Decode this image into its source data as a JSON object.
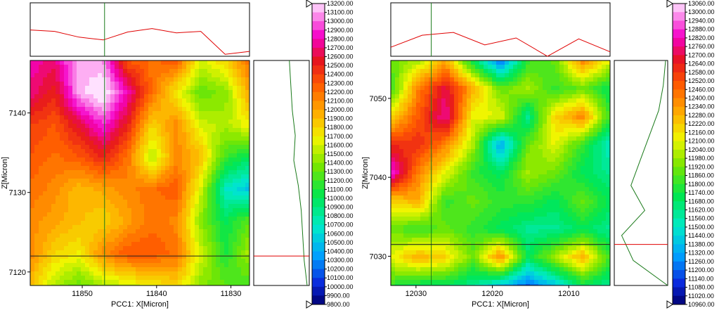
{
  "chart_data": [
    {
      "type": "heatmap",
      "xlabel": "PCC1: X[Micron]",
      "ylabel": "Z[Micron]",
      "x_ticks": [
        11850,
        11840,
        11830
      ],
      "y_ticks": [
        7120,
        7130,
        7140
      ],
      "xlim": [
        11857,
        11827.5
      ],
      "ylim": [
        7118.3,
        7146.6
      ],
      "crosshair": {
        "x": 11847,
        "z": 7122
      },
      "colorbar": {
        "min": 9800,
        "max": 13200,
        "ticks": [
          "13200.00",
          "13100.00",
          "13000.00",
          "12900.00",
          "12800.00",
          "12700.00",
          "12600.00",
          "12500.00",
          "12400.00",
          "12300.00",
          "12200.00",
          "12100.00",
          "12000.00",
          "11900.00",
          "11800.00",
          "11700.00",
          "11600.00",
          "11500.00",
          "11400.00",
          "11300.00",
          "11200.00",
          "11100.00",
          "11000.00",
          "10900.00",
          "10800.00",
          "10700.00",
          "10600.00",
          "10500.00",
          "10400.00",
          "10300.00",
          "10200.00",
          "10100.00",
          "10000.00",
          "9900.00",
          "9800.00"
        ]
      },
      "grid_values": [
        [
          12800,
          12700,
          13150,
          13050,
          12300,
          12200,
          12300,
          11600,
          11800,
          12200
        ],
        [
          12700,
          12500,
          13100,
          13300,
          12800,
          12200,
          11700,
          11300,
          11400,
          12000
        ],
        [
          12400,
          12300,
          12600,
          12900,
          12500,
          11800,
          12100,
          11600,
          11500,
          11700
        ],
        [
          12300,
          12200,
          12300,
          12500,
          12200,
          11500,
          12100,
          11900,
          11200,
          11000
        ],
        [
          12200,
          12100,
          11900,
          12000,
          12100,
          12200,
          12300,
          11600,
          10700,
          10500
        ],
        [
          12100,
          12000,
          11900,
          11800,
          12000,
          12200,
          12100,
          11400,
          11000,
          11300
        ],
        [
          12100,
          11800,
          11700,
          12100,
          12300,
          12300,
          12200,
          11600,
          11100,
          11500
        ],
        [
          11900,
          11500,
          11300,
          11500,
          11600,
          11700,
          11800,
          11400,
          11300,
          11200
        ]
      ],
      "top_profile": [
        12250,
        12200,
        12000,
        11900,
        12180,
        12300,
        12150,
        12200,
        11400,
        11500
      ],
      "side_profile": [
        12000,
        11950,
        11900,
        11800,
        11850,
        11700,
        11600,
        11550,
        11500,
        11400
      ]
    },
    {
      "type": "heatmap",
      "xlabel": "PCC1: X[Micron]",
      "ylabel": "Z[Micron]",
      "x_ticks": [
        12030,
        12020,
        12010
      ],
      "y_ticks": [
        7030,
        7040,
        7050
      ],
      "xlim": [
        12033.3,
        12004.6
      ],
      "ylim": [
        7026.3,
        7054.8
      ],
      "crosshair": {
        "x": 12028,
        "z": 7031.5
      },
      "colorbar": {
        "min": 10960,
        "max": 13060,
        "ticks": [
          "13060.00",
          "13000.00",
          "12940.00",
          "12880.00",
          "12820.00",
          "12760.00",
          "12700.00",
          "12640.00",
          "12580.00",
          "12520.00",
          "12460.00",
          "12400.00",
          "12340.00",
          "12280.00",
          "12220.00",
          "12160.00",
          "12100.00",
          "12040.00",
          "11980.00",
          "11920.00",
          "11860.00",
          "11800.00",
          "11740.00",
          "11680.00",
          "11620.00",
          "11560.00",
          "11500.00",
          "11440.00",
          "11380.00",
          "11320.00",
          "11260.00",
          "11200.00",
          "11140.00",
          "11080.00",
          "11020.00",
          "10960.00"
        ]
      },
      "grid_values": [
        [
          11900,
          12000,
          12300,
          11700,
          11200,
          11800,
          11900,
          12400,
          12100
        ],
        [
          11800,
          12400,
          12700,
          12300,
          11900,
          12000,
          11800,
          11900,
          11700
        ],
        [
          12200,
          12500,
          12800,
          12100,
          12100,
          11600,
          12200,
          12400,
          11800
        ],
        [
          12600,
          12600,
          12400,
          12000,
          11300,
          11900,
          12100,
          11800,
          11500
        ],
        [
          12900,
          12400,
          12100,
          11800,
          11700,
          12000,
          11900,
          11700,
          11600
        ],
        [
          12200,
          12300,
          11800,
          11900,
          11800,
          11800,
          11700,
          11900,
          11700
        ],
        [
          11900,
          11800,
          11900,
          11800,
          11700,
          11600,
          11600,
          11700,
          11600
        ],
        [
          12100,
          12300,
          12200,
          11900,
          12400,
          11700,
          12000,
          12300,
          11800
        ],
        [
          11800,
          11700,
          11700,
          11600,
          11400,
          11200,
          11400,
          11700,
          11600
        ]
      ],
      "top_profile": [
        12100,
        12360,
        12420,
        12150,
        12300,
        11850,
        12280,
        12000
      ],
      "side_profile": [
        11950,
        12000,
        12100,
        12300,
        12500,
        12700,
        12400,
        12900,
        12650,
        11900
      ]
    }
  ]
}
